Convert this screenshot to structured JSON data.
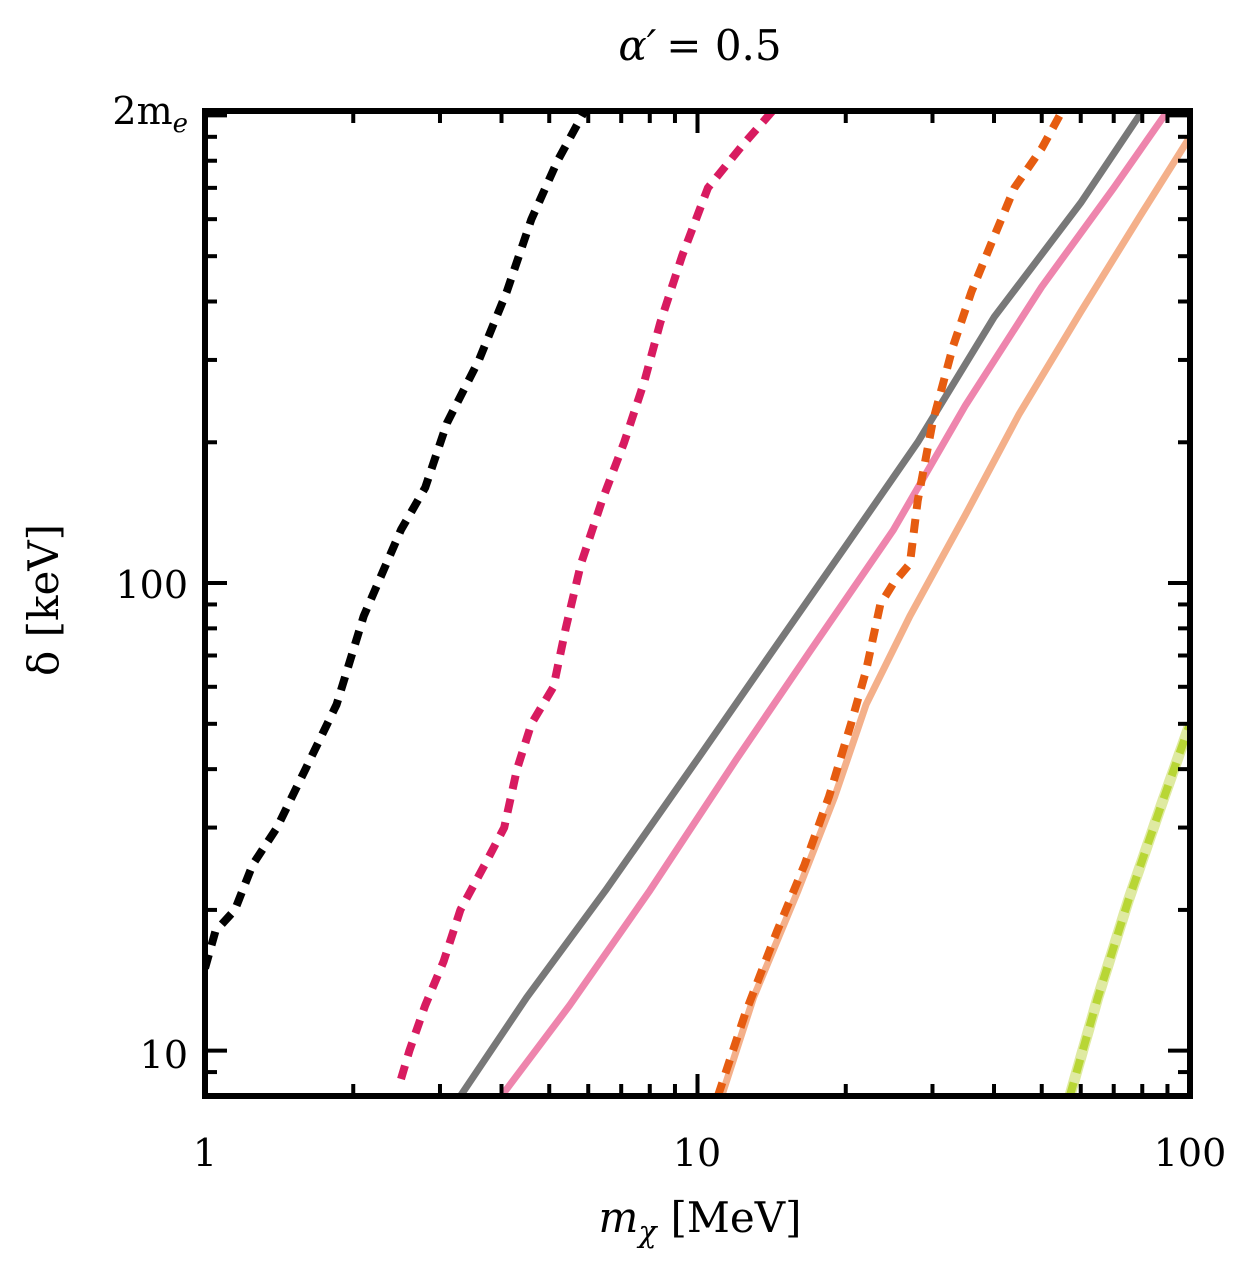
{
  "chart_data": {
    "type": "line",
    "title": "α′ = 0.5",
    "title_symbol": "α′",
    "title_value": "= 0.5",
    "xlabel": "m_χ [MeV]",
    "xlabel_symbol": "m",
    "xlabel_subscript": "χ",
    "xlabel_unit": "[MeV]",
    "ylabel": "δ [keV]",
    "xscale": "log",
    "yscale": "log",
    "xlim": [
      1,
      100
    ],
    "ylim": [
      8,
      1022
    ],
    "x_ticks": [
      {
        "value": 1,
        "label": "1"
      },
      {
        "value": 10,
        "label": "10"
      },
      {
        "value": 100,
        "label": "100"
      }
    ],
    "y_ticks": [
      {
        "value": 10,
        "label": "10"
      },
      {
        "value": 100,
        "label": "100"
      },
      {
        "value": 1022,
        "label": "2m_e",
        "symbol": "2m",
        "subscript": "e"
      }
    ],
    "grid": false,
    "series": [
      {
        "name": "black-dashed",
        "color": "#000000",
        "style": "dashed",
        "points": [
          [
            1.0,
            15
          ],
          [
            1.05,
            18
          ],
          [
            1.15,
            20
          ],
          [
            1.25,
            25
          ],
          [
            1.4,
            30
          ],
          [
            1.6,
            40
          ],
          [
            1.85,
            55
          ],
          [
            2.1,
            85
          ],
          [
            2.5,
            130
          ],
          [
            2.8,
            160
          ],
          [
            3.1,
            220
          ],
          [
            3.6,
            300
          ],
          [
            4.1,
            420
          ],
          [
            4.6,
            600
          ],
          [
            5.2,
            800
          ],
          [
            5.9,
            1022
          ]
        ]
      },
      {
        "name": "crimson-dashed",
        "color": "#d81b60",
        "style": "dashed",
        "points": [
          [
            2.5,
            8.7
          ],
          [
            2.6,
            10
          ],
          [
            2.8,
            12.5
          ],
          [
            3.05,
            15.5
          ],
          [
            3.3,
            20
          ],
          [
            3.7,
            25
          ],
          [
            4.05,
            30
          ],
          [
            4.3,
            40
          ],
          [
            4.6,
            50
          ],
          [
            5.1,
            60
          ],
          [
            5.4,
            80
          ],
          [
            5.8,
            110
          ],
          [
            6.4,
            150
          ],
          [
            7.1,
            200
          ],
          [
            7.8,
            270
          ],
          [
            8.4,
            360
          ],
          [
            9.3,
            500
          ],
          [
            10.5,
            700
          ],
          [
            12.3,
            860
          ],
          [
            14.2,
            1022
          ]
        ]
      },
      {
        "name": "gray-solid",
        "color": "#787878",
        "style": "solid",
        "points": [
          [
            3.3,
            8
          ],
          [
            4.5,
            13
          ],
          [
            6.5,
            22
          ],
          [
            10,
            42
          ],
          [
            14,
            70
          ],
          [
            20,
            120
          ],
          [
            28,
            200
          ],
          [
            40,
            370
          ],
          [
            60,
            650
          ],
          [
            80,
            1022
          ]
        ]
      },
      {
        "name": "pink-solid",
        "color": "#ee85ad",
        "style": "solid",
        "points": [
          [
            4.0,
            8
          ],
          [
            5.5,
            12.5
          ],
          [
            8,
            22
          ],
          [
            12,
            42
          ],
          [
            17,
            72
          ],
          [
            25,
            130
          ],
          [
            35,
            240
          ],
          [
            50,
            430
          ],
          [
            70,
            700
          ],
          [
            90,
            1022
          ]
        ]
      },
      {
        "name": "peach-solid",
        "color": "#f4b08a",
        "style": "solid",
        "points": [
          [
            11.2,
            8
          ],
          [
            13,
            13
          ],
          [
            16,
            22
          ],
          [
            19,
            35
          ],
          [
            22,
            55
          ],
          [
            27,
            85
          ],
          [
            35,
            140
          ],
          [
            45,
            230
          ],
          [
            60,
            380
          ],
          [
            80,
            620
          ],
          [
            100,
            900
          ]
        ]
      },
      {
        "name": "orange-dashed",
        "color": "#e65c10",
        "style": "dashed",
        "points": [
          [
            11.0,
            8
          ],
          [
            12.5,
            12
          ],
          [
            14.5,
            18
          ],
          [
            16.5,
            25
          ],
          [
            18.5,
            35
          ],
          [
            20.5,
            50
          ],
          [
            22,
            65
          ],
          [
            23.5,
            90
          ],
          [
            25,
            100
          ],
          [
            27,
            110
          ],
          [
            28,
            150
          ],
          [
            30,
            220
          ],
          [
            33,
            320
          ],
          [
            36,
            420
          ],
          [
            40,
            550
          ],
          [
            44,
            700
          ],
          [
            50,
            850
          ],
          [
            55,
            1022
          ]
        ]
      },
      {
        "name": "lime-solid",
        "color": "#dfeaa2",
        "style": "solid",
        "points": [
          [
            57,
            8
          ],
          [
            65,
            13
          ],
          [
            75,
            21
          ],
          [
            87,
            33
          ],
          [
            100,
            50
          ]
        ]
      },
      {
        "name": "lime-dashed",
        "color": "#b8d635",
        "style": "dashed",
        "points": [
          [
            57,
            8
          ],
          [
            65,
            13
          ],
          [
            75,
            21
          ],
          [
            87,
            33
          ],
          [
            100,
            50
          ]
        ]
      }
    ]
  }
}
